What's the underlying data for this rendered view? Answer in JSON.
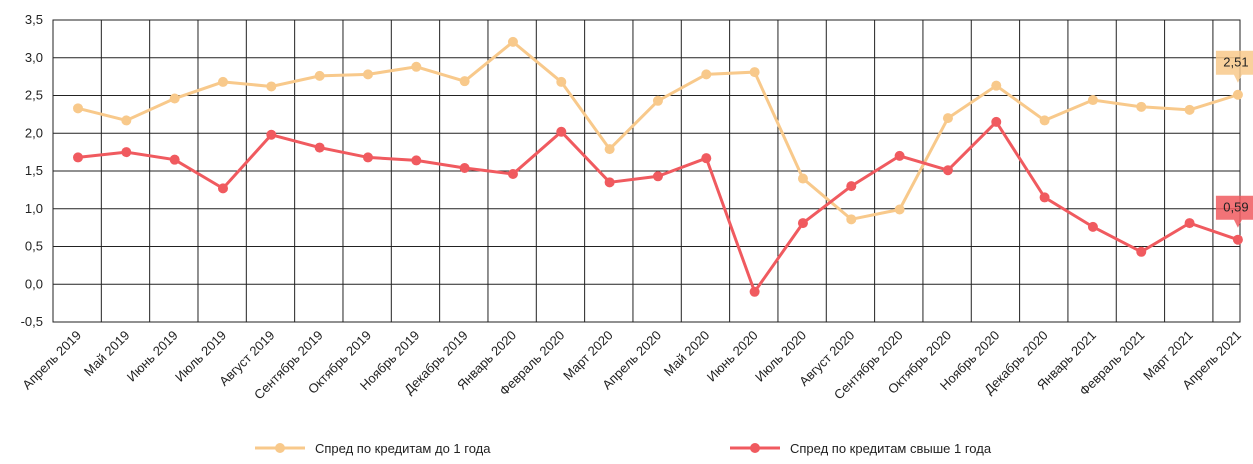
{
  "chart_data": {
    "type": "line",
    "categories": [
      "Апрель 2019",
      "Май 2019",
      "Июнь 2019",
      "Июль 2019",
      "Август 2019",
      "Сентябрь 2019",
      "Октябрь 2019",
      "Ноябрь 2019",
      "Декабрь 2019",
      "Январь 2020",
      "Февраль 2020",
      "Март 2020",
      "Апрель 2020",
      "Май 2020",
      "Июнь 2020",
      "Июль 2020",
      "Август 2020",
      "Сентябрь 2020",
      "Октябрь 2020",
      "Ноябрь 2020",
      "Декабрь 2020",
      "Январь 2021",
      "Февраль 2021",
      "Март 2021",
      "Апрель 2021"
    ],
    "series": [
      {
        "name": "Спред по кредитам до 1 года",
        "color": "#f8c98b",
        "values": [
          2.33,
          2.17,
          2.46,
          2.68,
          2.62,
          2.76,
          2.78,
          2.88,
          2.69,
          3.21,
          2.68,
          1.79,
          2.43,
          2.78,
          2.81,
          1.4,
          0.86,
          0.99,
          2.2,
          2.63,
          2.17,
          2.44,
          2.35,
          2.31,
          2.51
        ],
        "value_labels": [
          null,
          null,
          null,
          null,
          null,
          null,
          null,
          null,
          null,
          null,
          null,
          null,
          null,
          null,
          null,
          null,
          null,
          null,
          null,
          null,
          null,
          null,
          null,
          null,
          "2,51"
        ]
      },
      {
        "name": "Спред по кредитам свыше 1 года",
        "color": "#f05a5f",
        "values": [
          1.68,
          1.75,
          1.65,
          1.27,
          1.98,
          1.81,
          1.68,
          1.64,
          1.54,
          1.46,
          2.02,
          1.35,
          1.43,
          1.67,
          -0.1,
          0.81,
          1.3,
          1.7,
          1.51,
          2.15,
          1.15,
          0.76,
          0.43,
          0.81,
          0.59
        ],
        "value_labels": [
          null,
          null,
          null,
          null,
          null,
          null,
          null,
          null,
          null,
          null,
          null,
          null,
          null,
          null,
          null,
          null,
          null,
          null,
          null,
          null,
          null,
          null,
          null,
          null,
          "0,59"
        ]
      }
    ],
    "ylim": [
      -0.5,
      3.5
    ],
    "yticks": [
      {
        "value": -0.5,
        "label": "-0,5"
      },
      {
        "value": 0,
        "label": "0,0"
      },
      {
        "value": 0.5,
        "label": "0,5"
      },
      {
        "value": 1,
        "label": "1,0"
      },
      {
        "value": 1.5,
        "label": "1,5"
      },
      {
        "value": 2,
        "label": "2,0"
      },
      {
        "value": 2.5,
        "label": "2,5"
      },
      {
        "value": 3,
        "label": "3,0"
      },
      {
        "value": 3.5,
        "label": "3,5"
      }
    ],
    "grid": true,
    "legend": "bottom"
  }
}
